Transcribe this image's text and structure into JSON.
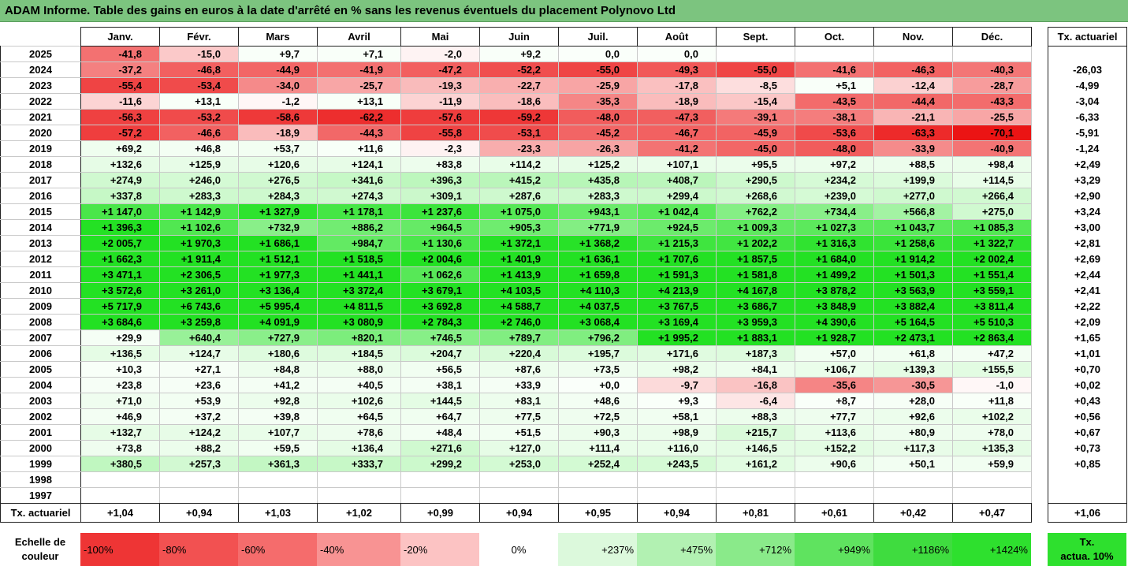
{
  "title": "ADAM Informe. Table des gains en euros à la date d'arrêté en % sans les revenus éventuels du placement Polynovo Ltd",
  "months": [
    "Janv.",
    "Févr.",
    "Mars",
    "Avril",
    "Mai",
    "Juin",
    "Juil.",
    "Août",
    "Sept.",
    "Oct.",
    "Nov.",
    "Déc."
  ],
  "side_header": "Tx. actuariel",
  "footer_label": "Tx. actuariel",
  "footer_values": [
    "+1,04",
    "+0,94",
    "+1,03",
    "+1,02",
    "+0,99",
    "+0,94",
    "+0,95",
    "+0,94",
    "+0,81",
    "+0,61",
    "+0,42",
    "+0,47"
  ],
  "footer_total": "+1,06",
  "rows": [
    {
      "year": "2025",
      "cells": [
        "-41,8",
        "-15,0",
        "+9,7",
        "+7,1",
        "-2,0",
        "+9,2",
        "0,0",
        "0,0",
        "",
        "",
        "",
        ""
      ],
      "rate": ""
    },
    {
      "year": "2024",
      "cells": [
        "-37,2",
        "-46,8",
        "-44,9",
        "-41,9",
        "-47,2",
        "-52,2",
        "-55,0",
        "-49,3",
        "-55,0",
        "-41,6",
        "-46,3",
        "-40,3"
      ],
      "rate": "-26,03"
    },
    {
      "year": "2023",
      "cells": [
        "-55,4",
        "-53,4",
        "-34,0",
        "-25,7",
        "-19,3",
        "-22,7",
        "-25,9",
        "-17,8",
        "-8,5",
        "+5,1",
        "-12,4",
        "-28,7"
      ],
      "rate": "-4,99"
    },
    {
      "year": "2022",
      "cells": [
        "-11,6",
        "+13,1",
        "-1,2",
        "+13,1",
        "-11,9",
        "-18,6",
        "-35,3",
        "-18,9",
        "-15,4",
        "-43,5",
        "-44,4",
        "-43,3"
      ],
      "rate": "-3,04"
    },
    {
      "year": "2021",
      "cells": [
        "-56,3",
        "-53,2",
        "-58,6",
        "-62,2",
        "-57,6",
        "-59,2",
        "-48,0",
        "-47,3",
        "-39,1",
        "-38,1",
        "-21,1",
        "-25,5"
      ],
      "rate": "-6,33"
    },
    {
      "year": "2020",
      "cells": [
        "-57,2",
        "-46,6",
        "-18,9",
        "-44,3",
        "-55,8",
        "-53,1",
        "-45,2",
        "-46,7",
        "-45,9",
        "-53,6",
        "-63,3",
        "-70,1"
      ],
      "rate": "-5,91"
    },
    {
      "year": "2019",
      "cells": [
        "+69,2",
        "+46,8",
        "+53,7",
        "+11,6",
        "-2,3",
        "-23,3",
        "-26,3",
        "-41,2",
        "-45,0",
        "-48,0",
        "-33,9",
        "-40,9"
      ],
      "rate": "-1,24"
    },
    {
      "year": "2018",
      "cells": [
        "+132,6",
        "+125,9",
        "+120,6",
        "+124,1",
        "+83,8",
        "+114,2",
        "+125,2",
        "+107,1",
        "+95,5",
        "+97,2",
        "+88,5",
        "+98,4"
      ],
      "rate": "+2,49"
    },
    {
      "year": "2017",
      "cells": [
        "+274,9",
        "+246,0",
        "+276,5",
        "+341,6",
        "+396,3",
        "+415,2",
        "+435,8",
        "+408,7",
        "+290,5",
        "+234,2",
        "+199,9",
        "+114,5"
      ],
      "rate": "+3,29"
    },
    {
      "year": "2016",
      "cells": [
        "+337,8",
        "+283,3",
        "+284,3",
        "+274,3",
        "+309,1",
        "+287,6",
        "+283,3",
        "+299,4",
        "+268,6",
        "+239,0",
        "+277,0",
        "+266,4"
      ],
      "rate": "+2,90"
    },
    {
      "year": "2015",
      "cells": [
        "+1 147,0",
        "+1 142,9",
        "+1 327,9",
        "+1 178,1",
        "+1 237,6",
        "+1 075,0",
        "+943,1",
        "+1 042,4",
        "+762,2",
        "+734,4",
        "+566,8",
        "+275,0"
      ],
      "rate": "+3,24"
    },
    {
      "year": "2014",
      "cells": [
        "+1 396,3",
        "+1 102,6",
        "+732,9",
        "+886,2",
        "+964,5",
        "+905,3",
        "+771,9",
        "+924,5",
        "+1 009,3",
        "+1 027,3",
        "+1 043,7",
        "+1 085,3"
      ],
      "rate": "+3,00"
    },
    {
      "year": "2013",
      "cells": [
        "+2 005,7",
        "+1 970,3",
        "+1 686,1",
        "+984,7",
        "+1 130,6",
        "+1 372,1",
        "+1 368,2",
        "+1 215,3",
        "+1 202,2",
        "+1 316,3",
        "+1 258,6",
        "+1 322,7"
      ],
      "rate": "+2,81"
    },
    {
      "year": "2012",
      "cells": [
        "+1 662,3",
        "+1 911,4",
        "+1 512,1",
        "+1 518,5",
        "+2 004,6",
        "+1 401,9",
        "+1 636,1",
        "+1 707,6",
        "+1 857,5",
        "+1 684,0",
        "+1 914,2",
        "+2 002,4"
      ],
      "rate": "+2,69"
    },
    {
      "year": "2011",
      "cells": [
        "+3 471,1",
        "+2 306,5",
        "+1 977,3",
        "+1 441,1",
        "+1 062,6",
        "+1 413,9",
        "+1 659,8",
        "+1 591,3",
        "+1 581,8",
        "+1 499,2",
        "+1 501,3",
        "+1 551,4"
      ],
      "rate": "+2,44"
    },
    {
      "year": "2010",
      "cells": [
        "+3 572,6",
        "+3 261,0",
        "+3 136,4",
        "+3 372,4",
        "+3 679,1",
        "+4 103,5",
        "+4 110,3",
        "+4 213,9",
        "+4 167,8",
        "+3 878,2",
        "+3 563,9",
        "+3 559,1"
      ],
      "rate": "+2,41"
    },
    {
      "year": "2009",
      "cells": [
        "+5 717,9",
        "+6 743,6",
        "+5 995,4",
        "+4 811,5",
        "+3 692,8",
        "+4 588,7",
        "+4 037,5",
        "+3 767,5",
        "+3 686,7",
        "+3 848,9",
        "+3 882,4",
        "+3 811,4"
      ],
      "rate": "+2,22"
    },
    {
      "year": "2008",
      "cells": [
        "+3 684,6",
        "+3 259,8",
        "+4 091,9",
        "+3 080,9",
        "+2 784,3",
        "+2 746,0",
        "+3 068,4",
        "+3 169,4",
        "+3 959,3",
        "+4 390,6",
        "+5 164,5",
        "+5 510,3"
      ],
      "rate": "+2,09"
    },
    {
      "year": "2007",
      "cells": [
        "+29,9",
        "+640,4",
        "+727,9",
        "+820,1",
        "+746,5",
        "+789,7",
        "+796,2",
        "+1 995,2",
        "+1 883,1",
        "+1 928,7",
        "+2 473,1",
        "+2 863,4"
      ],
      "rate": "+1,65"
    },
    {
      "year": "2006",
      "cells": [
        "+136,5",
        "+124,7",
        "+180,6",
        "+184,5",
        "+204,7",
        "+220,4",
        "+195,7",
        "+171,6",
        "+187,3",
        "+57,0",
        "+61,8",
        "+47,2"
      ],
      "rate": "+1,01"
    },
    {
      "year": "2005",
      "cells": [
        "+10,3",
        "+27,1",
        "+84,8",
        "+88,0",
        "+56,5",
        "+87,6",
        "+73,5",
        "+98,2",
        "+84,1",
        "+106,7",
        "+139,3",
        "+155,5"
      ],
      "rate": "+0,70"
    },
    {
      "year": "2004",
      "cells": [
        "+23,8",
        "+23,6",
        "+41,2",
        "+40,5",
        "+38,1",
        "+33,9",
        "+0,0",
        "-9,7",
        "-16,8",
        "-35,6",
        "-30,5",
        "-1,0"
      ],
      "rate": "+0,02"
    },
    {
      "year": "2003",
      "cells": [
        "+71,0",
        "+53,9",
        "+92,8",
        "+102,6",
        "+144,5",
        "+83,1",
        "+48,6",
        "+9,3",
        "-6,4",
        "+8,7",
        "+28,0",
        "+11,8"
      ],
      "rate": "+0,43"
    },
    {
      "year": "2002",
      "cells": [
        "+46,9",
        "+37,2",
        "+39,8",
        "+64,5",
        "+64,7",
        "+77,5",
        "+72,5",
        "+58,1",
        "+88,3",
        "+77,7",
        "+92,6",
        "+102,2"
      ],
      "rate": "+0,56"
    },
    {
      "year": "2001",
      "cells": [
        "+132,7",
        "+124,2",
        "+107,7",
        "+78,6",
        "+48,4",
        "+51,5",
        "+90,3",
        "+98,9",
        "+215,7",
        "+113,6",
        "+80,9",
        "+78,0"
      ],
      "rate": "+0,67"
    },
    {
      "year": "2000",
      "cells": [
        "+73,8",
        "+88,2",
        "+59,5",
        "+136,4",
        "+271,6",
        "+127,0",
        "+111,4",
        "+116,0",
        "+146,5",
        "+152,2",
        "+117,3",
        "+135,3"
      ],
      "rate": "+0,73"
    },
    {
      "year": "1999",
      "cells": [
        "+380,5",
        "+257,3",
        "+361,3",
        "+333,7",
        "+299,2",
        "+253,0",
        "+252,4",
        "+243,5",
        "+161,2",
        "+90,6",
        "+50,1",
        "+59,9"
      ],
      "rate": "+0,85"
    },
    {
      "year": "1998",
      "cells": [
        "",
        "",
        "",
        "",
        "",
        "",
        "",
        "",
        "",
        "",
        "",
        ""
      ],
      "rate": ""
    },
    {
      "year": "1997",
      "cells": [
        "",
        "",
        "",
        "",
        "",
        "",
        "",
        "",
        "",
        "",
        "",
        ""
      ],
      "rate": ""
    }
  ],
  "scale": {
    "label_line1": "Echelle de",
    "label_line2": "couleur",
    "steps": [
      {
        "label": "-100%",
        "color": "#ee3535",
        "kind": "neg"
      },
      {
        "label": "-80%",
        "color": "#f25151",
        "kind": "neg"
      },
      {
        "label": "-60%",
        "color": "#f56c6c",
        "kind": "neg"
      },
      {
        "label": "-40%",
        "color": "#f89393",
        "kind": "neg"
      },
      {
        "label": "-20%",
        "color": "#fcc3c3",
        "kind": "neg"
      },
      {
        "label": "0%",
        "color": "#ffffff",
        "kind": "zero"
      },
      {
        "label": "+237%",
        "color": "#dcf9dc",
        "kind": "pos"
      },
      {
        "label": "+475%",
        "color": "#b2f1b2",
        "kind": "pos"
      },
      {
        "label": "+712%",
        "color": "#8aea8a",
        "kind": "pos"
      },
      {
        "label": "+949%",
        "color": "#5fe35f",
        "kind": "pos"
      },
      {
        "label": "+1186%",
        "color": "#3fdc3f",
        "kind": "pos"
      },
      {
        "label": "+1424%",
        "color": "#2ee02e",
        "kind": "pos"
      }
    ],
    "side_line1": "Tx.",
    "side_line2": "actua. 10%"
  }
}
